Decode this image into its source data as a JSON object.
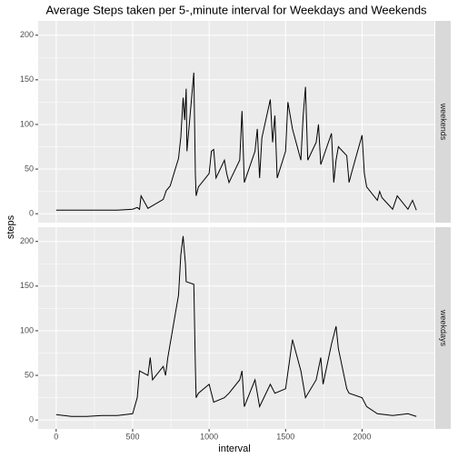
{
  "title": "Average Steps taken per 5-,minute interval for Weekdays and Weekends",
  "x_label": "interval",
  "y_label": "steps",
  "chart_data": [
    {
      "type": "line",
      "strip": "weekends",
      "color": "#000000",
      "grid": true,
      "x": [
        0,
        100,
        200,
        300,
        400,
        500,
        530,
        545,
        555,
        600,
        630,
        700,
        720,
        745,
        800,
        815,
        830,
        840,
        850,
        855,
        900,
        910,
        915,
        930,
        1000,
        1015,
        1030,
        1045,
        1100,
        1115,
        1130,
        1200,
        1215,
        1230,
        1300,
        1315,
        1330,
        1345,
        1400,
        1415,
        1430,
        1445,
        1500,
        1515,
        1530,
        1545,
        1600,
        1615,
        1630,
        1645,
        1700,
        1715,
        1730,
        1800,
        1815,
        1830,
        1845,
        1900,
        1915,
        1930,
        2000,
        2015,
        2030,
        2100,
        2115,
        2130,
        2200,
        2230,
        2300,
        2330,
        2355
      ],
      "values": [
        4,
        4,
        4,
        4,
        4,
        5,
        7,
        5,
        20,
        6,
        9,
        16,
        26,
        31,
        62,
        86,
        130,
        105,
        140,
        70,
        158,
        45,
        20,
        30,
        45,
        70,
        72,
        40,
        60,
        45,
        35,
        60,
        115,
        35,
        70,
        95,
        40,
        85,
        128,
        80,
        110,
        40,
        70,
        125,
        110,
        95,
        60,
        110,
        142,
        60,
        80,
        100,
        55,
        90,
        35,
        60,
        75,
        65,
        35,
        45,
        88,
        45,
        30,
        15,
        25,
        18,
        5,
        20,
        5,
        15,
        4
      ],
      "xlim": [
        -117.75,
        2472.75
      ],
      "ylim": [
        -10,
        216
      ],
      "xticks": [
        0,
        500,
        1000,
        1500,
        2000
      ],
      "yticks": [
        0,
        50,
        100,
        150,
        200
      ]
    },
    {
      "type": "line",
      "strip": "weekdays",
      "color": "#000000",
      "grid": true,
      "x": [
        0,
        100,
        200,
        300,
        400,
        500,
        530,
        545,
        600,
        615,
        630,
        700,
        715,
        730,
        800,
        815,
        830,
        845,
        850,
        900,
        910,
        915,
        930,
        1000,
        1030,
        1100,
        1130,
        1200,
        1215,
        1230,
        1300,
        1330,
        1400,
        1430,
        1500,
        1545,
        1600,
        1630,
        1700,
        1730,
        1745,
        1800,
        1830,
        1845,
        1900,
        1915,
        2000,
        2030,
        2100,
        2200,
        2300,
        2355
      ],
      "values": [
        6,
        4,
        4,
        5,
        5,
        7,
        25,
        55,
        50,
        70,
        45,
        60,
        50,
        70,
        140,
        185,
        206,
        175,
        155,
        152,
        60,
        25,
        30,
        40,
        20,
        25,
        30,
        45,
        55,
        15,
        45,
        15,
        40,
        30,
        35,
        90,
        55,
        25,
        45,
        70,
        40,
        85,
        105,
        80,
        35,
        30,
        25,
        15,
        7,
        5,
        7,
        4
      ],
      "xlim": [
        -117.75,
        2472.75
      ],
      "ylim": [
        -10,
        216
      ],
      "xticks": [
        0,
        500,
        1000,
        1500,
        2000
      ],
      "yticks": [
        0,
        50,
        100,
        150,
        200
      ]
    }
  ]
}
